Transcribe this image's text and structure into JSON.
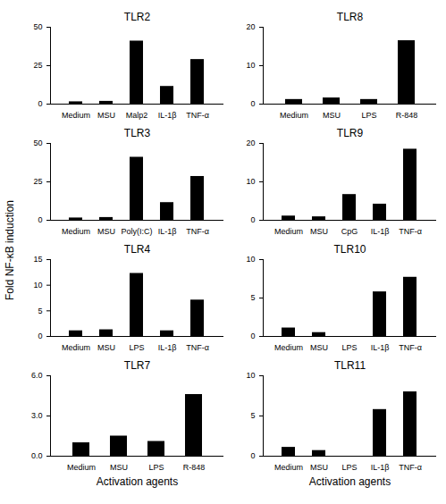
{
  "y_label": "Fold NF-κB induction",
  "chart_data": [
    {
      "type": "bar",
      "title": "TLR2",
      "categories": [
        "Medium",
        "MSU",
        "Malp2",
        "IL-1β",
        "TNF-α"
      ],
      "values": [
        1.5,
        1.8,
        41,
        11.5,
        29
      ],
      "color": "#000000",
      "ylim": [
        0,
        50
      ],
      "yticks": [
        0,
        25,
        50
      ]
    },
    {
      "type": "bar",
      "title": "TLR8",
      "categories": [
        "Medium",
        "MSU",
        "LPS",
        "R-848"
      ],
      "values": [
        1.2,
        1.6,
        1.2,
        16.5
      ],
      "color": "#000000",
      "ylim": [
        0,
        20
      ],
      "yticks": [
        0,
        10,
        20
      ]
    },
    {
      "type": "bar",
      "title": "TLR3",
      "categories": [
        "Medium",
        "MSU",
        "Poly(I:C)",
        "IL-1β",
        "TNF-α"
      ],
      "values": [
        1.5,
        1.8,
        41,
        11.5,
        28.5
      ],
      "color": "#000000",
      "ylim": [
        0,
        50
      ],
      "yticks": [
        0,
        25,
        50
      ]
    },
    {
      "type": "bar",
      "title": "TLR9",
      "categories": [
        "Medium",
        "MSU",
        "CpG",
        "IL-1β",
        "TNF-α"
      ],
      "values": [
        1.1,
        0.9,
        6.7,
        4.2,
        18.5
      ],
      "color": "#000000",
      "ylim": [
        0,
        20
      ],
      "yticks": [
        0,
        10,
        20
      ]
    },
    {
      "type": "bar",
      "title": "TLR4",
      "categories": [
        "Medium",
        "MSU",
        "LPS",
        "IL-1β",
        "TNF-α"
      ],
      "values": [
        1.1,
        1.3,
        12.3,
        1.1,
        7.1
      ],
      "color": "#000000",
      "ylim": [
        0,
        15
      ],
      "yticks": [
        0,
        5,
        10,
        15
      ]
    },
    {
      "type": "bar",
      "title": "TLR10",
      "categories": [
        "Medium",
        "MSU",
        "LPS",
        "IL-1β",
        "TNF-α"
      ],
      "values": [
        1.1,
        0.5,
        0,
        5.8,
        7.7
      ],
      "color": "#000000",
      "ylim": [
        0,
        10
      ],
      "yticks": [
        0,
        5,
        10
      ]
    },
    {
      "type": "bar",
      "title": "TLR7",
      "categories": [
        "Medium",
        "MSU",
        "LPS",
        "R-848"
      ],
      "values": [
        1.0,
        1.5,
        1.1,
        4.6
      ],
      "color": "#000000",
      "ylim": [
        0,
        6
      ],
      "yticks": [
        0,
        3,
        6
      ],
      "x_label": "Activation agents"
    },
    {
      "type": "bar",
      "title": "TLR11",
      "categories": [
        "Medium",
        "MSU",
        "LPS",
        "IL-1β",
        "TNF-α"
      ],
      "values": [
        1.1,
        0.7,
        0,
        5.8,
        8.0
      ],
      "color": "#000000",
      "ylim": [
        0,
        10
      ],
      "yticks": [
        0,
        5,
        10
      ],
      "x_label": "Activation agents"
    }
  ]
}
